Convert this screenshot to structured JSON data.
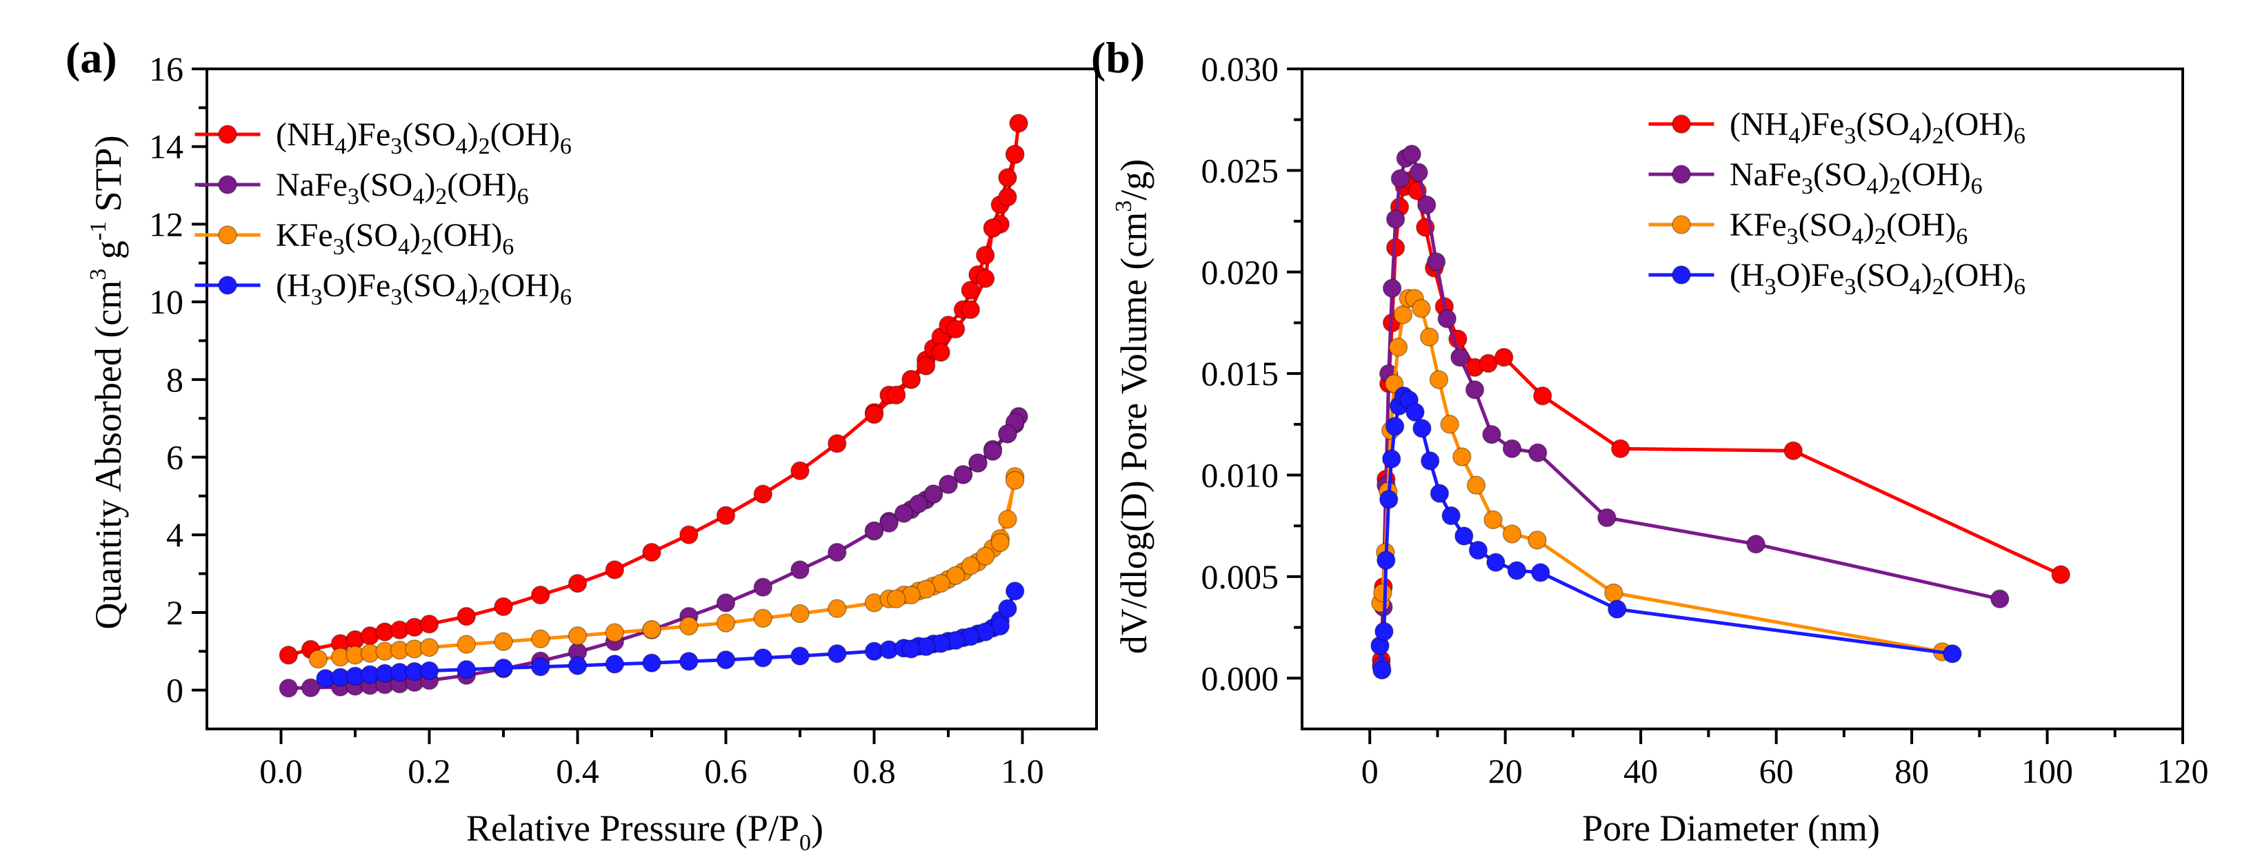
{
  "colors": {
    "NH4": "#ff0000",
    "Na": "#7b1a8b",
    "K": "#ff8c00",
    "H3O": "#1a1aff"
  },
  "chart_data": [
    {
      "type": "line",
      "panel": "(a)",
      "xlabel": {
        "main": "Relative Pressure (P/P",
        "sub": "0",
        "close": ")"
      },
      "ylabel": {
        "p1": "Quantity Absorbed (cm",
        "sup1": "3",
        "p2": " g",
        "sup2": "-1",
        "p3": " STP)"
      },
      "xlim": [
        -0.1,
        1.1
      ],
      "ylim": [
        -1,
        16
      ],
      "xticks": [
        0.0,
        0.2,
        0.4,
        0.6,
        0.8,
        1.0
      ],
      "xtick_labels": [
        "0.0",
        "0.2",
        "0.4",
        "0.6",
        "0.8",
        "1.0"
      ],
      "yticks": [
        0,
        2,
        4,
        6,
        8,
        10,
        12,
        14,
        16
      ],
      "ytick_labels": [
        "0",
        "2",
        "4",
        "6",
        "8",
        "10",
        "12",
        "14",
        "16"
      ],
      "legend_position": "top-left",
      "series": [
        {
          "name": "(NH4)Fe3(SO4)2(OH)6",
          "legend_parts": [
            [
              "(NH",
              ""
            ],
            [
              "4",
              "sub"
            ],
            [
              ")Fe",
              ""
            ],
            [
              "3",
              "sub"
            ],
            [
              "(SO",
              ""
            ],
            [
              "4",
              "sub"
            ],
            [
              ")",
              ""
            ],
            [
              "2",
              "sub"
            ],
            [
              "(OH)",
              ""
            ],
            [
              "6",
              "sub"
            ]
          ],
          "color_key": "NH4",
          "x": [
            0.01,
            0.04,
            0.08,
            0.1,
            0.12,
            0.14,
            0.16,
            0.18,
            0.2,
            0.25,
            0.3,
            0.35,
            0.4,
            0.45,
            0.5,
            0.55,
            0.6,
            0.65,
            0.7,
            0.75,
            0.8,
            0.82,
            0.85,
            0.87,
            0.88,
            0.89,
            0.9,
            0.92,
            0.93,
            0.94,
            0.95,
            0.96,
            0.97,
            0.98,
            0.99,
            0.995,
            0.99,
            0.98,
            0.97,
            0.96,
            0.95,
            0.93,
            0.91,
            0.89,
            0.87,
            0.85,
            0.83,
            0.8
          ],
          "y": [
            0.9,
            1.05,
            1.2,
            1.3,
            1.4,
            1.5,
            1.55,
            1.62,
            1.7,
            1.9,
            2.15,
            2.45,
            2.75,
            3.1,
            3.55,
            4.0,
            4.5,
            5.05,
            5.65,
            6.35,
            7.15,
            7.6,
            8.0,
            8.5,
            8.8,
            9.1,
            9.4,
            9.8,
            10.3,
            10.7,
            11.2,
            11.9,
            12.5,
            13.2,
            13.8,
            14.6,
            13.8,
            12.7,
            12.0,
            11.9,
            10.6,
            9.8,
            9.3,
            8.7,
            8.35,
            8.0,
            7.6,
            7.1
          ]
        },
        {
          "name": "NaFe3(SO4)2(OH)6",
          "legend_parts": [
            [
              "NaFe",
              ""
            ],
            [
              "3",
              "sub"
            ],
            [
              "(SO",
              ""
            ],
            [
              "4",
              "sub"
            ],
            [
              ")",
              ""
            ],
            [
              "2",
              "sub"
            ],
            [
              "(OH)",
              ""
            ],
            [
              "6",
              "sub"
            ]
          ],
          "color_key": "Na",
          "x": [
            0.01,
            0.04,
            0.08,
            0.1,
            0.12,
            0.14,
            0.16,
            0.18,
            0.2,
            0.25,
            0.3,
            0.35,
            0.4,
            0.45,
            0.5,
            0.55,
            0.6,
            0.65,
            0.7,
            0.75,
            0.8,
            0.82,
            0.85,
            0.87,
            0.88,
            0.9,
            0.92,
            0.94,
            0.96,
            0.98,
            0.99,
            0.995,
            0.99,
            0.98,
            0.96,
            0.94,
            0.92,
            0.9,
            0.88,
            0.86,
            0.84,
            0.82,
            0.8
          ],
          "y": [
            0.05,
            0.06,
            0.08,
            0.1,
            0.12,
            0.14,
            0.16,
            0.2,
            0.25,
            0.38,
            0.55,
            0.75,
            0.98,
            1.25,
            1.55,
            1.9,
            2.25,
            2.65,
            3.1,
            3.55,
            4.1,
            4.35,
            4.65,
            4.9,
            5.05,
            5.3,
            5.55,
            5.85,
            6.2,
            6.6,
            6.85,
            7.05,
            6.9,
            6.6,
            6.15,
            5.85,
            5.55,
            5.3,
            5.05,
            4.8,
            4.55,
            4.3,
            4.1
          ]
        },
        {
          "name": "KFe3(SO4)2(OH)6",
          "legend_parts": [
            [
              "KFe",
              ""
            ],
            [
              "3",
              "sub"
            ],
            [
              "(SO",
              ""
            ],
            [
              "4",
              "sub"
            ],
            [
              ")",
              ""
            ],
            [
              "2",
              "sub"
            ],
            [
              "(OH)",
              ""
            ],
            [
              "6",
              "sub"
            ]
          ],
          "color_key": "K",
          "x": [
            0.05,
            0.08,
            0.1,
            0.12,
            0.14,
            0.16,
            0.18,
            0.2,
            0.25,
            0.3,
            0.35,
            0.4,
            0.45,
            0.5,
            0.55,
            0.6,
            0.65,
            0.7,
            0.75,
            0.8,
            0.82,
            0.84,
            0.86,
            0.88,
            0.9,
            0.92,
            0.94,
            0.96,
            0.97,
            0.98,
            0.99,
            0.99,
            0.97,
            0.95,
            0.93,
            0.91,
            0.89,
            0.87,
            0.85,
            0.83
          ],
          "y": [
            0.8,
            0.85,
            0.9,
            0.95,
            1.0,
            1.03,
            1.06,
            1.1,
            1.18,
            1.25,
            1.32,
            1.4,
            1.48,
            1.56,
            1.65,
            1.73,
            1.85,
            1.97,
            2.1,
            2.25,
            2.35,
            2.45,
            2.55,
            2.68,
            2.85,
            3.05,
            3.3,
            3.65,
            3.9,
            4.4,
            5.5,
            5.4,
            3.8,
            3.45,
            3.2,
            2.95,
            2.75,
            2.6,
            2.45,
            2.35
          ]
        },
        {
          "name": "(H3O)Fe3(SO4)2(OH)6",
          "legend_parts": [
            [
              "(H",
              ""
            ],
            [
              "3",
              "sub"
            ],
            [
              "O)Fe",
              ""
            ],
            [
              "3",
              "sub"
            ],
            [
              "(SO",
              ""
            ],
            [
              "4",
              "sub"
            ],
            [
              ")",
              ""
            ],
            [
              "2",
              "sub"
            ],
            [
              "(OH)",
              ""
            ],
            [
              "6",
              "sub"
            ]
          ],
          "color_key": "H3O",
          "x": [
            0.06,
            0.08,
            0.1,
            0.12,
            0.14,
            0.16,
            0.18,
            0.2,
            0.25,
            0.3,
            0.35,
            0.4,
            0.45,
            0.5,
            0.55,
            0.6,
            0.65,
            0.7,
            0.75,
            0.8,
            0.82,
            0.84,
            0.86,
            0.88,
            0.9,
            0.92,
            0.94,
            0.96,
            0.97,
            0.98,
            0.99,
            0.97,
            0.95,
            0.93,
            0.91,
            0.89,
            0.87,
            0.85
          ],
          "y": [
            0.3,
            0.33,
            0.36,
            0.4,
            0.43,
            0.46,
            0.48,
            0.5,
            0.53,
            0.57,
            0.6,
            0.63,
            0.67,
            0.7,
            0.74,
            0.78,
            0.83,
            0.88,
            0.94,
            1.0,
            1.04,
            1.08,
            1.13,
            1.19,
            1.26,
            1.35,
            1.45,
            1.6,
            1.8,
            2.1,
            2.55,
            1.65,
            1.5,
            1.38,
            1.28,
            1.2,
            1.12,
            1.06
          ]
        }
      ]
    },
    {
      "type": "line",
      "panel": "(b)",
      "xlabel": {
        "main": "Pore Diameter (nm)"
      },
      "ylabel": {
        "p1": "dV/dlog(D) Pore Volume (cm",
        "sup1": "3",
        "p2": "/g)"
      },
      "xlim": [
        -10,
        120
      ],
      "ylim": [
        -0.0025,
        0.03
      ],
      "xticks": [
        0,
        20,
        40,
        60,
        80,
        100,
        120
      ],
      "xtick_labels": [
        "0",
        "20",
        "40",
        "60",
        "80",
        "100",
        "120"
      ],
      "yticks": [
        0.0,
        0.005,
        0.01,
        0.015,
        0.02,
        0.025,
        0.03
      ],
      "ytick_labels": [
        "0.000",
        "0.005",
        "0.010",
        "0.015",
        "0.020",
        "0.025",
        "0.030"
      ],
      "legend_position": "top-right",
      "series": [
        {
          "name": "(NH4)Fe3(SO4)2(OH)6",
          "color_key": "NH4",
          "x": [
            1.7,
            2.0,
            2.4,
            2.8,
            3.3,
            3.8,
            4.4,
            5.1,
            6.0,
            7.0,
            8.2,
            9.5,
            11.0,
            13.0,
            15.5,
            17.5,
            19.8,
            25.5,
            37.0,
            62.5,
            102.0
          ],
          "y": [
            0.0009,
            0.0045,
            0.0098,
            0.0145,
            0.0175,
            0.0212,
            0.0232,
            0.0242,
            0.0245,
            0.024,
            0.0222,
            0.0202,
            0.0183,
            0.0167,
            0.0153,
            0.0155,
            0.0158,
            0.0139,
            0.0113,
            0.0112,
            0.0051
          ]
        },
        {
          "name": "NaFe3(SO4)2(OH)6",
          "color_key": "Na",
          "x": [
            1.7,
            2.0,
            2.4,
            2.8,
            3.3,
            3.8,
            4.5,
            5.3,
            6.2,
            7.2,
            8.4,
            9.8,
            11.4,
            13.3,
            15.5,
            18.0,
            21.0,
            24.8,
            35.0,
            57.0,
            93.0
          ],
          "y": [
            0.0006,
            0.0035,
            0.0095,
            0.015,
            0.0192,
            0.0226,
            0.0246,
            0.0256,
            0.0258,
            0.0249,
            0.0233,
            0.0205,
            0.0177,
            0.0158,
            0.0142,
            0.012,
            0.0113,
            0.0111,
            0.0079,
            0.0066,
            0.0039
          ]
        },
        {
          "name": "KFe3(SO4)2(OH)6",
          "color_key": "K",
          "x": [
            1.6,
            1.9,
            2.3,
            2.7,
            3.1,
            3.6,
            4.2,
            4.9,
            5.7,
            6.6,
            7.6,
            8.8,
            10.2,
            11.8,
            13.6,
            15.7,
            18.2,
            21.0,
            24.7,
            36.0,
            84.5
          ],
          "y": [
            0.0037,
            0.0042,
            0.0062,
            0.0092,
            0.0122,
            0.0145,
            0.0163,
            0.0179,
            0.0187,
            0.0187,
            0.0182,
            0.0168,
            0.0147,
            0.0125,
            0.0109,
            0.0095,
            0.0078,
            0.0071,
            0.0068,
            0.0042,
            0.0013
          ]
        },
        {
          "name": "(H3O)Fe3(SO4)2(OH)6",
          "color_key": "H3O",
          "x": [
            1.5,
            1.8,
            2.1,
            2.4,
            2.8,
            3.2,
            3.7,
            4.3,
            5.0,
            5.8,
            6.7,
            7.7,
            8.9,
            10.3,
            12.0,
            13.9,
            16.0,
            18.6,
            21.7,
            25.2,
            36.5,
            86.0
          ],
          "y": [
            0.0016,
            0.0004,
            0.0023,
            0.0058,
            0.0088,
            0.0108,
            0.0124,
            0.0134,
            0.0139,
            0.0137,
            0.0131,
            0.0123,
            0.0107,
            0.0091,
            0.008,
            0.007,
            0.0063,
            0.0057,
            0.0053,
            0.0052,
            0.0034,
            0.0012
          ]
        }
      ]
    }
  ]
}
